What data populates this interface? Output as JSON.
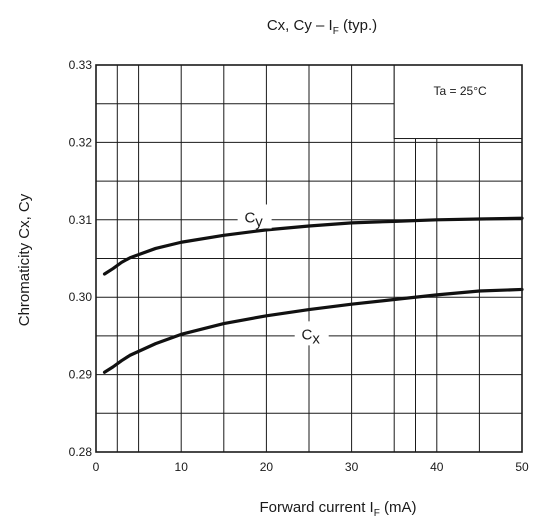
{
  "chart_data": {
    "type": "line",
    "title": "Cx, Cy – I",
    "title_sub": "F",
    "title_suffix": " (typ.)",
    "xlabel": "Forward current   I",
    "xlabel_sub": "F",
    "xlabel_suffix": "    (mA)",
    "ylabel": "Chromaticity Cx, Cy",
    "xlim": [
      0,
      50
    ],
    "ylim": [
      0.28,
      0.33
    ],
    "x_ticks": [
      0,
      10,
      20,
      30,
      40,
      50
    ],
    "x_tick_labels": [
      "0",
      "10",
      "20",
      "30",
      "40",
      "50"
    ],
    "y_ticks": [
      0.28,
      0.29,
      0.3,
      0.31,
      0.32,
      0.33
    ],
    "y_tick_labels": [
      "0.28",
      "0.29",
      "0.30",
      "0.31",
      "0.32",
      "0.33"
    ],
    "grid": true,
    "annotation": "Ta = 25°C",
    "series": [
      {
        "name": "Cy",
        "label_main": "C",
        "label_sub": "y",
        "x": [
          1,
          2,
          3,
          4,
          5,
          7,
          10,
          15,
          20,
          25,
          30,
          35,
          40,
          45,
          50
        ],
        "y": [
          0.303,
          0.3037,
          0.3045,
          0.3051,
          0.3055,
          0.3063,
          0.3071,
          0.308,
          0.3087,
          0.3092,
          0.3096,
          0.3098,
          0.31,
          0.3101,
          0.3102
        ]
      },
      {
        "name": "Cx",
        "label_main": "C",
        "label_sub": "x",
        "x": [
          1,
          2,
          3,
          4,
          5,
          7,
          10,
          15,
          20,
          25,
          30,
          35,
          40,
          45,
          50
        ],
        "y": [
          0.2903,
          0.291,
          0.2918,
          0.2925,
          0.293,
          0.294,
          0.2952,
          0.2966,
          0.2976,
          0.2984,
          0.2991,
          0.2997,
          0.3003,
          0.3008,
          0.301
        ]
      }
    ]
  }
}
